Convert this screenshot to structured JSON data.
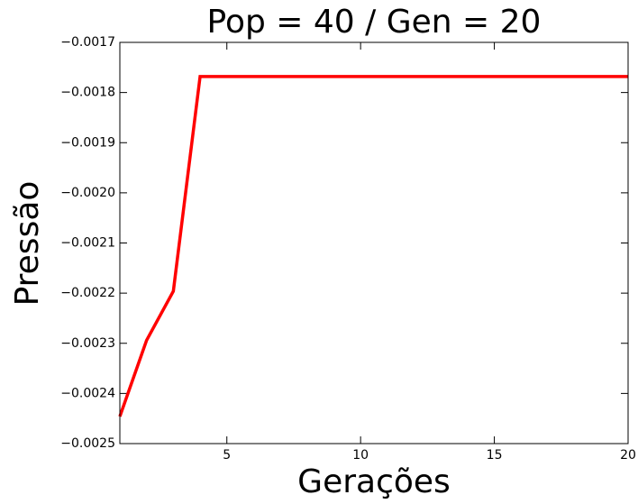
{
  "chart_data": {
    "type": "line",
    "title": "Pop = 40 / Gen = 20",
    "xlabel": "Gerações",
    "ylabel": "Pressão",
    "x": [
      1,
      2,
      3,
      4,
      5,
      6,
      7,
      8,
      9,
      10,
      11,
      12,
      13,
      14,
      15,
      16,
      17,
      18,
      19,
      20
    ],
    "series": [
      {
        "name": null,
        "color": "#ff0000",
        "values": [
          -0.002446,
          -0.002294,
          -0.002196,
          -0.001768,
          -0.001768,
          -0.001768,
          -0.001768,
          -0.001768,
          -0.001768,
          -0.001768,
          -0.001768,
          -0.001768,
          -0.001768,
          -0.001768,
          -0.001768,
          -0.001768,
          -0.001768,
          -0.001768,
          -0.001768,
          -0.001768
        ]
      }
    ],
    "xlim": [
      1,
      20
    ],
    "xticks": [
      5,
      10,
      15,
      20
    ],
    "ylim": [
      -0.0025,
      -0.0017
    ],
    "yticks": [
      {
        "value": -0.0025,
        "label": "−0.0025"
      },
      {
        "value": -0.0024,
        "label": "−0.0024"
      },
      {
        "value": -0.0023,
        "label": "−0.0023"
      },
      {
        "value": -0.0022,
        "label": "−0.0022"
      },
      {
        "value": -0.0021,
        "label": "−0.0021"
      },
      {
        "value": -0.002,
        "label": "−0.0020"
      },
      {
        "value": -0.0019,
        "label": "−0.0019"
      },
      {
        "value": -0.0018,
        "label": "−0.0018"
      },
      {
        "value": -0.0017,
        "label": "−0.0017"
      }
    ],
    "grid": false
  }
}
